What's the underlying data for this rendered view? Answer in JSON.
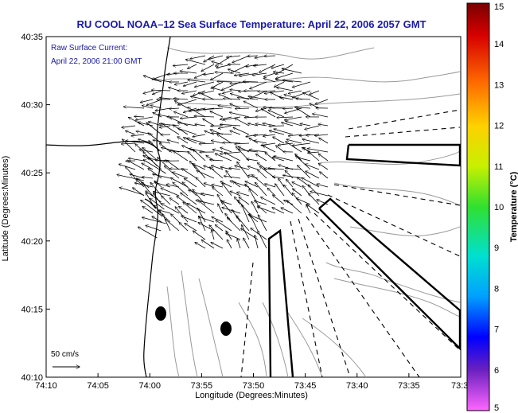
{
  "title": "RU COOL  NOAA–12  Sea Surface Temperature:  April 22, 2006 2057 GMT",
  "annotation": {
    "line1": "Raw Surface Current:",
    "line2": "April 22, 2006 21:00 GMT"
  },
  "axes": {
    "xlabel": "Longitude (Degrees:Minutes)",
    "ylabel": "Latitude (Degrees:Minutes)",
    "xticks": [
      "74:10",
      "74:05",
      "74:00",
      "73:55",
      "73:50",
      "73:45",
      "73:40",
      "73:35",
      "73:3"
    ],
    "yticks": [
      "40:35",
      "40:30",
      "40:25",
      "40:20",
      "40:15",
      "40:10"
    ]
  },
  "scale_arrow": {
    "label": "50 cm/s"
  },
  "colorbar": {
    "label": "Temperature (°C)",
    "ticks": [
      "15",
      "14",
      "13",
      "12",
      "11",
      "10",
      "9",
      "8",
      "7",
      "6",
      "5"
    ],
    "colors": {
      "top": "#8b0000",
      "orange": "#ff8c00",
      "yellow": "#ffee00",
      "green": "#22dd22",
      "cyan": "#00e0e0",
      "blue": "#0000ff",
      "purple": "#6a1fc0",
      "bottom": "#ff66ff"
    }
  },
  "markers": [
    "station-marker",
    "station-marker"
  ],
  "colors": {
    "title": "#1a1aa8",
    "coast": "#000000",
    "bathymetry": "#9a9a9a",
    "land": "#ffffff"
  }
}
